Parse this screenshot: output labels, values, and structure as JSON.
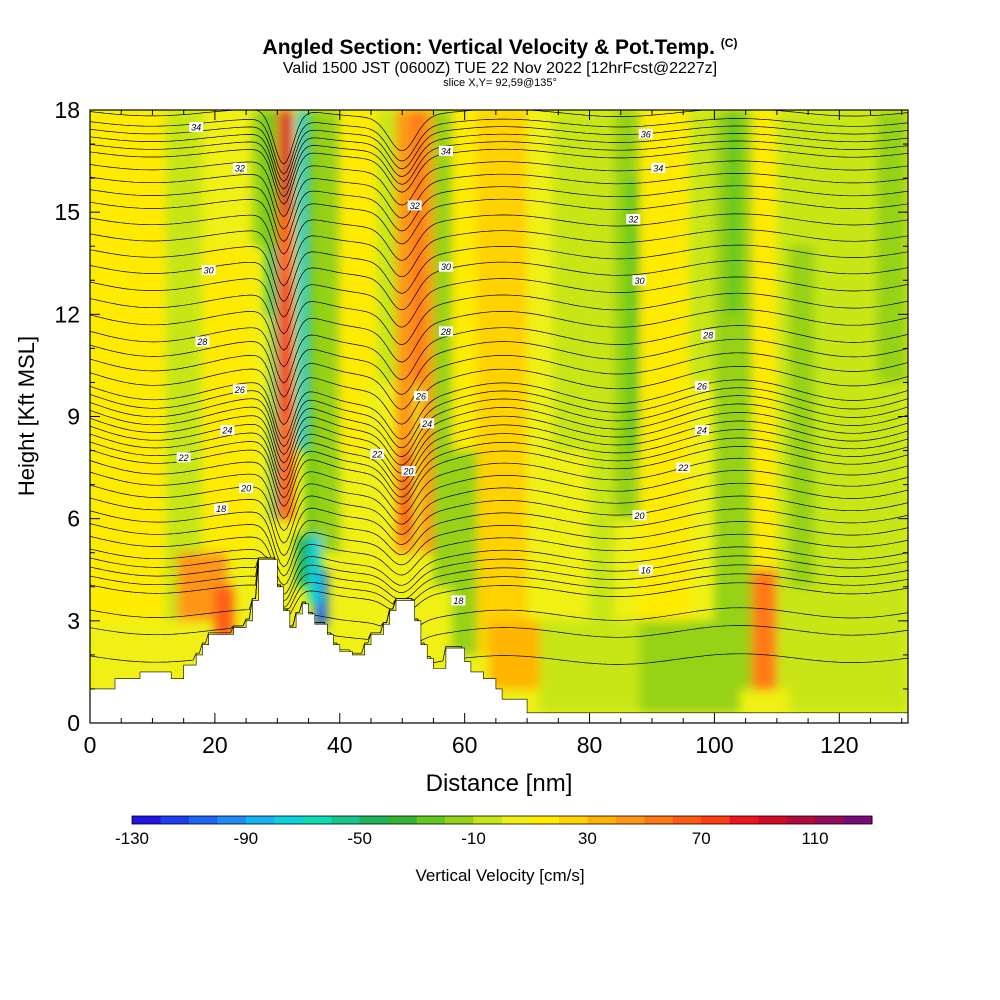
{
  "header": {
    "title": "Angled Section: Vertical Velocity & Pot.Temp.",
    "title_suffix": "(C)",
    "valid_line": "Valid 1500 JST (0600Z) TUE 22 Nov 2022 [12hrFcst@2227z]",
    "slice_line": "slice X,Y= 92,59@135°"
  },
  "chart_data": {
    "type": "heatmap",
    "xlabel": "Distance [nm]",
    "ylabel": "Height [Kft MSL]",
    "xlim": [
      0,
      131
    ],
    "ylim": [
      0,
      18
    ],
    "x_ticks": [
      0,
      20,
      40,
      60,
      80,
      100,
      120
    ],
    "y_ticks": [
      0,
      3,
      6,
      9,
      12,
      15,
      18
    ],
    "colorbar": {
      "label": "Vertical Velocity [cm/s]",
      "tick_labels": [
        "-130",
        "-90",
        "-50",
        "-10",
        "30",
        "70",
        "110"
      ],
      "levels": [
        -130,
        -120,
        -110,
        -100,
        -90,
        -80,
        -70,
        -60,
        -50,
        -40,
        -30,
        -20,
        -10,
        0,
        10,
        20,
        30,
        40,
        50,
        60,
        70,
        80,
        90,
        100,
        110,
        120,
        130
      ],
      "colors": [
        "#1e14e6",
        "#1e3cf0",
        "#1e64f5",
        "#1e8cf5",
        "#14b4f0",
        "#0ad2dc",
        "#0adcb4",
        "#14c88c",
        "#1eb45a",
        "#32b432",
        "#64c81e",
        "#96d214",
        "#c8e614",
        "#f0f014",
        "#ffeb00",
        "#ffd200",
        "#ffb400",
        "#ff9614",
        "#ff7814",
        "#ff5a14",
        "#ff3c14",
        "#f0141e",
        "#d20a28",
        "#b40a3c",
        "#960a5a",
        "#780a78"
      ]
    },
    "theta_contours": [
      {
        "level": 16,
        "height_kft": 3.8
      },
      {
        "level": 18,
        "height_kft": 4.8
      },
      {
        "level": 20,
        "height_kft": 6.2
      },
      {
        "level": 22,
        "height_kft": 7.6
      },
      {
        "level": 24,
        "height_kft": 8.6
      },
      {
        "level": 26,
        "height_kft": 9.6
      },
      {
        "level": 28,
        "height_kft": 11.3
      },
      {
        "level": 30,
        "height_kft": 13.3
      },
      {
        "level": 32,
        "height_kft": 15.2
      },
      {
        "level": 34,
        "height_kft": 16.7
      },
      {
        "level": 36,
        "height_kft": 17.6
      }
    ],
    "contour_labels": [
      {
        "text": "34",
        "x": 17,
        "y": 17.5
      },
      {
        "text": "32",
        "x": 24,
        "y": 16.3
      },
      {
        "text": "30",
        "x": 19,
        "y": 13.3
      },
      {
        "text": "28",
        "x": 18,
        "y": 11.2
      },
      {
        "text": "26",
        "x": 24,
        "y": 9.8
      },
      {
        "text": "24",
        "x": 22,
        "y": 8.6
      },
      {
        "text": "22",
        "x": 15,
        "y": 7.8
      },
      {
        "text": "20",
        "x": 25,
        "y": 6.9
      },
      {
        "text": "18",
        "x": 21,
        "y": 6.3
      },
      {
        "text": "34",
        "x": 57,
        "y": 16.8
      },
      {
        "text": "32",
        "x": 52,
        "y": 15.2
      },
      {
        "text": "30",
        "x": 57,
        "y": 13.4
      },
      {
        "text": "28",
        "x": 57,
        "y": 11.5
      },
      {
        "text": "26",
        "x": 53,
        "y": 9.6
      },
      {
        "text": "24",
        "x": 54,
        "y": 8.8
      },
      {
        "text": "22",
        "x": 46,
        "y": 7.9
      },
      {
        "text": "20",
        "x": 51,
        "y": 7.4
      },
      {
        "text": "18",
        "x": 59,
        "y": 3.6
      },
      {
        "text": "36",
        "x": 89,
        "y": 17.3
      },
      {
        "text": "34",
        "x": 91,
        "y": 16.3
      },
      {
        "text": "32",
        "x": 87,
        "y": 14.8
      },
      {
        "text": "30",
        "x": 88,
        "y": 13.0
      },
      {
        "text": "28",
        "x": 99,
        "y": 11.4
      },
      {
        "text": "26",
        "x": 98,
        "y": 9.9
      },
      {
        "text": "24",
        "x": 98,
        "y": 8.6
      },
      {
        "text": "22",
        "x": 95,
        "y": 7.5
      },
      {
        "text": "20",
        "x": 88,
        "y": 6.1
      },
      {
        "text": "16",
        "x": 89,
        "y": 4.5
      }
    ],
    "terrain_profile": [
      [
        0,
        1.0
      ],
      [
        4,
        1.0
      ],
      [
        4,
        1.3
      ],
      [
        8,
        1.3
      ],
      [
        8,
        1.5
      ],
      [
        13,
        1.5
      ],
      [
        13,
        1.3
      ],
      [
        15,
        1.3
      ],
      [
        15,
        1.7
      ],
      [
        17,
        1.7
      ],
      [
        17,
        2.0
      ],
      [
        18,
        2.0
      ],
      [
        18,
        2.3
      ],
      [
        19,
        2.3
      ],
      [
        19,
        2.6
      ],
      [
        23,
        2.6
      ],
      [
        23,
        2.8
      ],
      [
        25,
        2.8
      ],
      [
        25,
        3.0
      ],
      [
        26,
        3.0
      ],
      [
        26,
        3.6
      ],
      [
        27,
        3.6
      ],
      [
        27,
        4.8
      ],
      [
        30,
        4.8
      ],
      [
        30,
        4.0
      ],
      [
        31,
        4.0
      ],
      [
        31,
        3.3
      ],
      [
        32,
        3.3
      ],
      [
        32,
        2.8
      ],
      [
        33,
        2.8
      ],
      [
        33,
        3.2
      ],
      [
        34,
        3.2
      ],
      [
        34,
        3.5
      ],
      [
        35,
        3.5
      ],
      [
        35,
        3.2
      ],
      [
        36,
        3.2
      ],
      [
        36,
        2.9
      ],
      [
        38,
        2.9
      ],
      [
        38,
        2.6
      ],
      [
        39,
        2.6
      ],
      [
        39,
        2.3
      ],
      [
        40,
        2.3
      ],
      [
        40,
        2.1
      ],
      [
        42,
        2.1
      ],
      [
        42,
        2.0
      ],
      [
        44,
        2.0
      ],
      [
        44,
        2.3
      ],
      [
        45,
        2.3
      ],
      [
        45,
        2.6
      ],
      [
        47,
        2.6
      ],
      [
        47,
        2.9
      ],
      [
        48,
        2.9
      ],
      [
        48,
        3.3
      ],
      [
        49,
        3.3
      ],
      [
        49,
        3.6
      ],
      [
        52,
        3.6
      ],
      [
        52,
        3.0
      ],
      [
        53,
        3.0
      ],
      [
        53,
        2.3
      ],
      [
        54,
        2.3
      ],
      [
        54,
        1.9
      ],
      [
        55,
        1.9
      ],
      [
        55,
        1.6
      ],
      [
        57,
        1.6
      ],
      [
        57,
        2.2
      ],
      [
        60,
        2.2
      ],
      [
        60,
        1.8
      ],
      [
        61,
        1.8
      ],
      [
        61,
        1.5
      ],
      [
        63,
        1.5
      ],
      [
        63,
        1.3
      ],
      [
        65,
        1.3
      ],
      [
        65,
        1.0
      ],
      [
        66,
        1.0
      ],
      [
        66,
        0.7
      ],
      [
        70,
        0.7
      ],
      [
        70,
        0.3
      ],
      [
        131,
        0.3
      ]
    ]
  }
}
